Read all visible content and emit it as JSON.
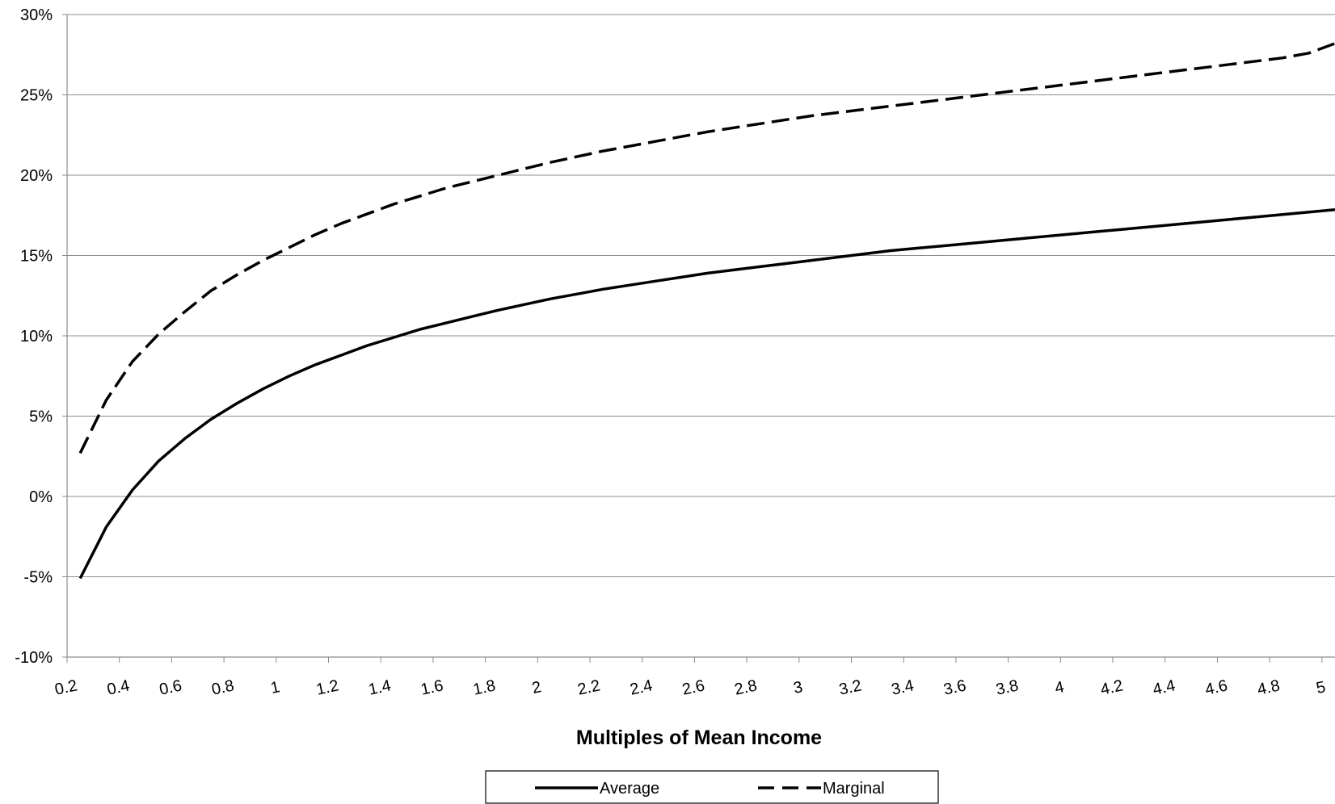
{
  "chart_data": {
    "type": "line",
    "title": "",
    "xlabel": "Multiples of Mean Income",
    "ylabel": "",
    "xlim": [
      0.2,
      5.05
    ],
    "ylim": [
      -0.1,
      0.3
    ],
    "grid": true,
    "legend_position": "bottom",
    "y_ticks": [
      -0.1,
      -0.05,
      0.0,
      0.05,
      0.1,
      0.15,
      0.2,
      0.25,
      0.3
    ],
    "y_tick_labels": [
      "-10%",
      "-5%",
      "0%",
      "5%",
      "10%",
      "15%",
      "20%",
      "25%",
      "30%"
    ],
    "x_tick_labels": [
      "0.2",
      "0.4",
      "0.6",
      "0.8",
      "1",
      "1.2",
      "1.4",
      "1.6",
      "1.8",
      "2",
      "2.2",
      "2.4",
      "2.6",
      "2.8",
      "3",
      "3.2",
      "3.4",
      "3.6",
      "3.8",
      "4",
      "4.2",
      "4.4",
      "4.6",
      "4.8",
      "5"
    ],
    "x": [
      0.25,
      0.35,
      0.45,
      0.55,
      0.65,
      0.75,
      0.85,
      0.95,
      1.05,
      1.15,
      1.25,
      1.35,
      1.45,
      1.55,
      1.65,
      1.75,
      1.85,
      1.95,
      2.05,
      2.15,
      2.25,
      2.35,
      2.45,
      2.55,
      2.65,
      2.75,
      2.85,
      2.95,
      3.05,
      3.15,
      3.25,
      3.35,
      3.45,
      3.55,
      3.65,
      3.75,
      3.85,
      3.95,
      4.05,
      4.15,
      4.25,
      4.35,
      4.45,
      4.55,
      4.65,
      4.75,
      4.85,
      4.95,
      5.05
    ],
    "series": [
      {
        "name": "Average",
        "style": "solid",
        "color": "#000000",
        "values": [
          -0.051,
          -0.019,
          0.004,
          0.022,
          0.036,
          0.048,
          0.058,
          0.067,
          0.075,
          0.082,
          0.088,
          0.094,
          0.099,
          0.104,
          0.108,
          0.112,
          0.116,
          0.1195,
          0.123,
          0.126,
          0.129,
          0.1315,
          0.134,
          0.1365,
          0.139,
          0.141,
          0.143,
          0.145,
          0.147,
          0.149,
          0.151,
          0.153,
          0.1545,
          0.156,
          0.1575,
          0.159,
          0.1605,
          0.162,
          0.1635,
          0.165,
          0.1665,
          0.168,
          0.1695,
          0.171,
          0.1725,
          0.174,
          0.1755,
          0.177,
          0.1785
        ]
      },
      {
        "name": "Marginal",
        "style": "dashed",
        "color": "#000000",
        "values": [
          0.027,
          0.06,
          0.084,
          0.101,
          0.115,
          0.128,
          0.138,
          0.147,
          0.155,
          0.163,
          0.17,
          0.176,
          0.182,
          0.187,
          0.192,
          0.196,
          0.2,
          0.204,
          0.208,
          0.2115,
          0.215,
          0.218,
          0.221,
          0.224,
          0.227,
          0.2295,
          0.232,
          0.2345,
          0.237,
          0.239,
          0.241,
          0.243,
          0.245,
          0.247,
          0.249,
          0.251,
          0.253,
          0.255,
          0.257,
          0.259,
          0.261,
          0.263,
          0.265,
          0.267,
          0.269,
          0.271,
          0.273,
          0.276,
          0.282
        ]
      }
    ]
  }
}
